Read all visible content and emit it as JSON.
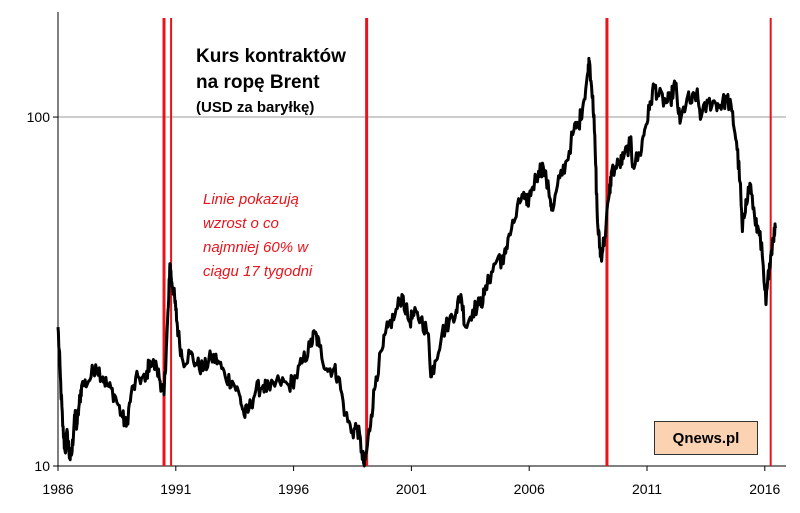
{
  "chart_data": {
    "type": "line",
    "title_lines": [
      "Kurs kontraktów",
      "na ropę Brent",
      "(USD za baryłkę)"
    ],
    "annotation_lines": [
      "Linie pokazują",
      "wzrost o co",
      "najmniej 60% w",
      "ciągu 17 tygodni"
    ],
    "source": "Qnews.pl",
    "y_scale": "log",
    "ylim": [
      10,
      200
    ],
    "y_ticks": [
      {
        "value": 10,
        "label": "10"
      },
      {
        "value": 100,
        "label": "100"
      }
    ],
    "xlim": [
      1986,
      2016.9
    ],
    "x_ticks": [
      {
        "value": 1986,
        "label": "1986"
      },
      {
        "value": 1991,
        "label": "1991"
      },
      {
        "value": 1996,
        "label": "1996"
      },
      {
        "value": 2001,
        "label": "2001"
      },
      {
        "value": 2006,
        "label": "2006"
      },
      {
        "value": 2011,
        "label": "2011"
      },
      {
        "value": 2016,
        "label": "2016"
      }
    ],
    "gridline_y": [
      100
    ],
    "vertical_lines": [
      1990.5,
      1990.8,
      1999.1,
      2009.3,
      2016.25
    ],
    "colors": {
      "series": "#000000",
      "vertical_lines": "#e8141b",
      "annotation": "#e8141b",
      "source_box": "#fbd3b3"
    },
    "series": [
      {
        "values": [
          [
            1986.0,
            25
          ],
          [
            1986.1,
            18
          ],
          [
            1986.2,
            13
          ],
          [
            1986.3,
            11
          ],
          [
            1986.4,
            12.5
          ],
          [
            1986.5,
            10.5
          ],
          [
            1986.6,
            11
          ],
          [
            1986.7,
            14
          ],
          [
            1986.8,
            13
          ],
          [
            1986.9,
            15
          ],
          [
            1987.0,
            17
          ],
          [
            1987.3,
            17.5
          ],
          [
            1987.6,
            19.5
          ],
          [
            1987.9,
            18
          ],
          [
            1988.1,
            17
          ],
          [
            1988.4,
            16
          ],
          [
            1988.7,
            14
          ],
          [
            1988.9,
            13
          ],
          [
            1989.1,
            16
          ],
          [
            1989.4,
            18
          ],
          [
            1989.7,
            17.5
          ],
          [
            1989.9,
            20
          ],
          [
            1990.2,
            19
          ],
          [
            1990.4,
            17
          ],
          [
            1990.5,
            16
          ],
          [
            1990.6,
            22
          ],
          [
            1990.7,
            30
          ],
          [
            1990.75,
            38
          ],
          [
            1990.8,
            35
          ],
          [
            1990.9,
            32
          ],
          [
            1991.0,
            28
          ],
          [
            1991.1,
            24
          ],
          [
            1991.3,
            20
          ],
          [
            1991.6,
            21
          ],
          [
            1991.9,
            19.5
          ],
          [
            1992.2,
            19
          ],
          [
            1992.5,
            20.5
          ],
          [
            1992.8,
            20
          ],
          [
            1993.1,
            18
          ],
          [
            1993.4,
            17.5
          ],
          [
            1993.7,
            16
          ],
          [
            1993.9,
            14
          ],
          [
            1994.1,
            14.5
          ],
          [
            1994.4,
            16.5
          ],
          [
            1994.7,
            17
          ],
          [
            1995.0,
            16.5
          ],
          [
            1995.4,
            17.5
          ],
          [
            1995.8,
            17
          ],
          [
            1996.1,
            18
          ],
          [
            1996.4,
            20
          ],
          [
            1996.7,
            22
          ],
          [
            1996.9,
            24
          ],
          [
            1997.1,
            22
          ],
          [
            1997.4,
            19
          ],
          [
            1997.7,
            19
          ],
          [
            1997.9,
            18
          ],
          [
            1998.2,
            14
          ],
          [
            1998.5,
            12.5
          ],
          [
            1998.7,
            13
          ],
          [
            1998.9,
            11
          ],
          [
            1999.0,
            10
          ],
          [
            1999.1,
            11
          ],
          [
            1999.3,
            14
          ],
          [
            1999.5,
            18
          ],
          [
            1999.8,
            22
          ],
          [
            2000.0,
            25
          ],
          [
            2000.3,
            27
          ],
          [
            2000.6,
            31
          ],
          [
            2000.9,
            26
          ],
          [
            2001.1,
            27
          ],
          [
            2001.4,
            26.5
          ],
          [
            2001.7,
            24
          ],
          [
            2001.85,
            18
          ],
          [
            2002.0,
            20
          ],
          [
            2002.3,
            24
          ],
          [
            2002.6,
            26
          ],
          [
            2002.9,
            28
          ],
          [
            2003.1,
            31
          ],
          [
            2003.3,
            25
          ],
          [
            2003.6,
            28
          ],
          [
            2003.9,
            29
          ],
          [
            2004.1,
            31
          ],
          [
            2004.4,
            36
          ],
          [
            2004.7,
            40
          ],
          [
            2004.9,
            38
          ],
          [
            2005.1,
            45
          ],
          [
            2005.4,
            51
          ],
          [
            2005.7,
            60
          ],
          [
            2005.9,
            56
          ],
          [
            2006.1,
            62
          ],
          [
            2006.4,
            70
          ],
          [
            2006.6,
            72
          ],
          [
            2006.9,
            58
          ],
          [
            2007.0,
            54
          ],
          [
            2007.3,
            67
          ],
          [
            2007.6,
            75
          ],
          [
            2007.9,
            92
          ],
          [
            2008.1,
            95
          ],
          [
            2008.3,
            110
          ],
          [
            2008.5,
            135
          ],
          [
            2008.55,
            145
          ],
          [
            2008.7,
            115
          ],
          [
            2008.8,
            80
          ],
          [
            2008.9,
            50
          ],
          [
            2009.0,
            42
          ],
          [
            2009.05,
            40
          ],
          [
            2009.2,
            45
          ],
          [
            2009.4,
            60
          ],
          [
            2009.5,
            70
          ],
          [
            2009.8,
            73
          ],
          [
            2010.0,
            76
          ],
          [
            2010.3,
            85
          ],
          [
            2010.4,
            73
          ],
          [
            2010.7,
            78
          ],
          [
            2010.9,
            92
          ],
          [
            2011.1,
            105
          ],
          [
            2011.3,
            123
          ],
          [
            2011.5,
            115
          ],
          [
            2011.8,
            110
          ],
          [
            2012.0,
            112
          ],
          [
            2012.2,
            125
          ],
          [
            2012.4,
            96
          ],
          [
            2012.7,
            113
          ],
          [
            2012.9,
            110
          ],
          [
            2013.1,
            117
          ],
          [
            2013.3,
            100
          ],
          [
            2013.6,
            110
          ],
          [
            2013.9,
            110
          ],
          [
            2014.1,
            108
          ],
          [
            2014.4,
            113
          ],
          [
            2014.6,
            104
          ],
          [
            2014.8,
            85
          ],
          [
            2014.95,
            65
          ],
          [
            2015.05,
            47
          ],
          [
            2015.2,
            58
          ],
          [
            2015.4,
            64
          ],
          [
            2015.6,
            49
          ],
          [
            2015.8,
            47
          ],
          [
            2016.0,
            32
          ],
          [
            2016.05,
            29
          ],
          [
            2016.2,
            38
          ],
          [
            2016.35,
            45
          ],
          [
            2016.45,
            48
          ]
        ]
      }
    ]
  }
}
